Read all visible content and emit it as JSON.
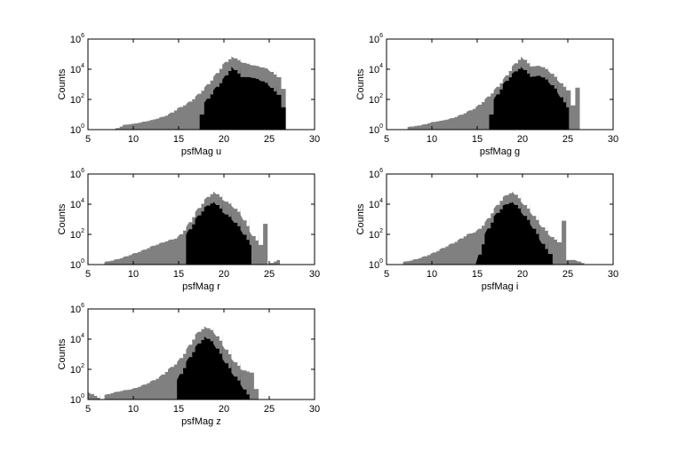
{
  "figure": {
    "colors": {
      "all_objects": "#808080",
      "subset": "#000000",
      "frame": "#000000",
      "background": "#ffffff"
    }
  },
  "chart_data": [
    {
      "type": "bar",
      "xlabel": "psfMag u",
      "ylabel": "Counts",
      "xlim": [
        5,
        30
      ],
      "ylim": [
        1,
        1000000
      ],
      "yscale": "log",
      "xticks": [
        5,
        10,
        15,
        20,
        25,
        30
      ],
      "yticks": [
        {
          "base": "10",
          "exp": "0"
        },
        {
          "base": "10",
          "exp": "2"
        },
        {
          "base": "10",
          "exp": "4"
        },
        {
          "base": "10",
          "exp": "6"
        }
      ],
      "series": [
        {
          "color": "#808080",
          "x": [
            8,
            9,
            11,
            13,
            14,
            15,
            16,
            17,
            18,
            19,
            20,
            21,
            22,
            23,
            24,
            25,
            26,
            26.5,
            27
          ],
          "values": [
            1,
            2,
            3,
            6,
            10,
            25,
            50,
            150,
            600,
            3000,
            20000,
            70000,
            30000,
            20000,
            15000,
            10000,
            3000,
            500,
            1
          ]
        },
        {
          "color": "#000000",
          "x": [
            17,
            17.5,
            18,
            19,
            20,
            21,
            22,
            23,
            24,
            25,
            26,
            26.5,
            27
          ],
          "values": [
            1,
            10,
            60,
            400,
            2000,
            15000,
            3000,
            3000,
            2000,
            1000,
            200,
            30,
            1
          ]
        }
      ]
    },
    {
      "type": "bar",
      "xlabel": "psfMag g",
      "ylabel": "Counts",
      "xlim": [
        5,
        30
      ],
      "ylim": [
        1,
        1000000
      ],
      "yscale": "log",
      "xticks": [
        5,
        10,
        15,
        20,
        25,
        30
      ],
      "yticks": [
        {
          "base": "10",
          "exp": "0"
        },
        {
          "base": "10",
          "exp": "2"
        },
        {
          "base": "10",
          "exp": "4"
        },
        {
          "base": "10",
          "exp": "6"
        }
      ],
      "series": [
        {
          "color": "#808080",
          "x": [
            7.5,
            9,
            10,
            12,
            13,
            14,
            15,
            16,
            17,
            18,
            19,
            20,
            21,
            22,
            23,
            24,
            25,
            25.5,
            26,
            26.5
          ],
          "values": [
            1.5,
            2,
            3,
            5,
            8,
            15,
            30,
            100,
            400,
            2000,
            15000,
            70000,
            15000,
            18000,
            8000,
            2000,
            400,
            40,
            600,
            1
          ]
        },
        {
          "color": "#000000",
          "x": [
            16,
            16.5,
            17,
            18,
            19,
            20,
            21,
            22,
            23,
            24,
            25,
            25.3
          ],
          "values": [
            1,
            10,
            100,
            1000,
            5000,
            15000,
            3000,
            4000,
            1500,
            300,
            30,
            1
          ]
        }
      ]
    },
    {
      "type": "bar",
      "xlabel": "psfMag r",
      "ylabel": "Counts",
      "xlim": [
        5,
        30
      ],
      "ylim": [
        1,
        1000000
      ],
      "yscale": "log",
      "xticks": [
        5,
        10,
        15,
        20,
        25,
        30
      ],
      "yticks": [
        {
          "base": "10",
          "exp": "0"
        },
        {
          "base": "10",
          "exp": "2"
        },
        {
          "base": "10",
          "exp": "4"
        },
        {
          "base": "10",
          "exp": "6"
        }
      ],
      "series": [
        {
          "color": "#808080",
          "x": [
            7,
            8,
            9,
            10,
            11,
            12,
            13,
            14,
            15,
            16,
            17,
            18,
            19,
            20,
            21,
            22,
            23,
            24,
            24.5,
            25,
            26
          ],
          "values": [
            1.5,
            2,
            3,
            5,
            8,
            15,
            25,
            40,
            60,
            300,
            3000,
            20000,
            70000,
            20000,
            8000,
            2000,
            150,
            20,
            500,
            1,
            2
          ]
        },
        {
          "color": "#000000",
          "x": [
            15.5,
            16,
            17,
            18,
            19,
            20,
            21,
            22,
            23,
            23.2
          ],
          "values": [
            1,
            100,
            1000,
            6000,
            15000,
            3000,
            1000,
            200,
            20,
            1
          ]
        }
      ]
    },
    {
      "type": "bar",
      "xlabel": "psfMag i",
      "ylabel": "Counts",
      "xlim": [
        5,
        30
      ],
      "ylim": [
        1,
        1000000
      ],
      "yscale": "log",
      "xticks": [
        5,
        10,
        15,
        20,
        25,
        30
      ],
      "yticks": [
        {
          "base": "10",
          "exp": "0"
        },
        {
          "base": "10",
          "exp": "2"
        },
        {
          "base": "10",
          "exp": "4"
        },
        {
          "base": "10",
          "exp": "6"
        }
      ],
      "series": [
        {
          "color": "#808080",
          "x": [
            7,
            8,
            9,
            10,
            11,
            12,
            13,
            14,
            15,
            16,
            17,
            18,
            19,
            20,
            21,
            22,
            23,
            24,
            24.5,
            25,
            26,
            27
          ],
          "values": [
            1.5,
            2,
            3,
            5,
            10,
            20,
            40,
            100,
            150,
            600,
            5000,
            30000,
            70000,
            15000,
            3000,
            500,
            100,
            30,
            800,
            2,
            2,
            1
          ]
        },
        {
          "color": "#000000",
          "x": [
            15,
            16,
            17,
            18,
            19,
            20,
            21,
            22,
            23,
            23.5
          ],
          "values": [
            1,
            100,
            1500,
            8000,
            15000,
            3000,
            500,
            50,
            5,
            1
          ]
        }
      ]
    },
    {
      "type": "bar",
      "xlabel": "psfMag z",
      "ylabel": "Counts",
      "xlim": [
        5,
        30
      ],
      "ylim": [
        1,
        1000000
      ],
      "yscale": "log",
      "xticks": [
        5,
        10,
        15,
        20,
        25,
        30
      ],
      "yticks": [
        {
          "base": "10",
          "exp": "0"
        },
        {
          "base": "10",
          "exp": "2"
        },
        {
          "base": "10",
          "exp": "4"
        },
        {
          "base": "10",
          "exp": "6"
        }
      ],
      "series": [
        {
          "color": "#808080",
          "x": [
            5.2,
            6.5,
            7,
            8,
            9,
            10,
            11,
            12,
            13,
            14,
            15,
            16,
            17,
            18,
            19,
            20,
            21,
            22,
            23,
            23.5,
            24
          ],
          "values": [
            3,
            1,
            2,
            3,
            4,
            5,
            8,
            15,
            30,
            100,
            300,
            2000,
            20000,
            70000,
            30000,
            4000,
            500,
            100,
            60,
            5,
            1
          ]
        },
        {
          "color": "#000000",
          "x": [
            14.5,
            15,
            16,
            17,
            18,
            19,
            20,
            21,
            22,
            23
          ],
          "values": [
            1,
            20,
            300,
            3000,
            15000,
            5000,
            500,
            60,
            10,
            1
          ]
        }
      ]
    }
  ]
}
